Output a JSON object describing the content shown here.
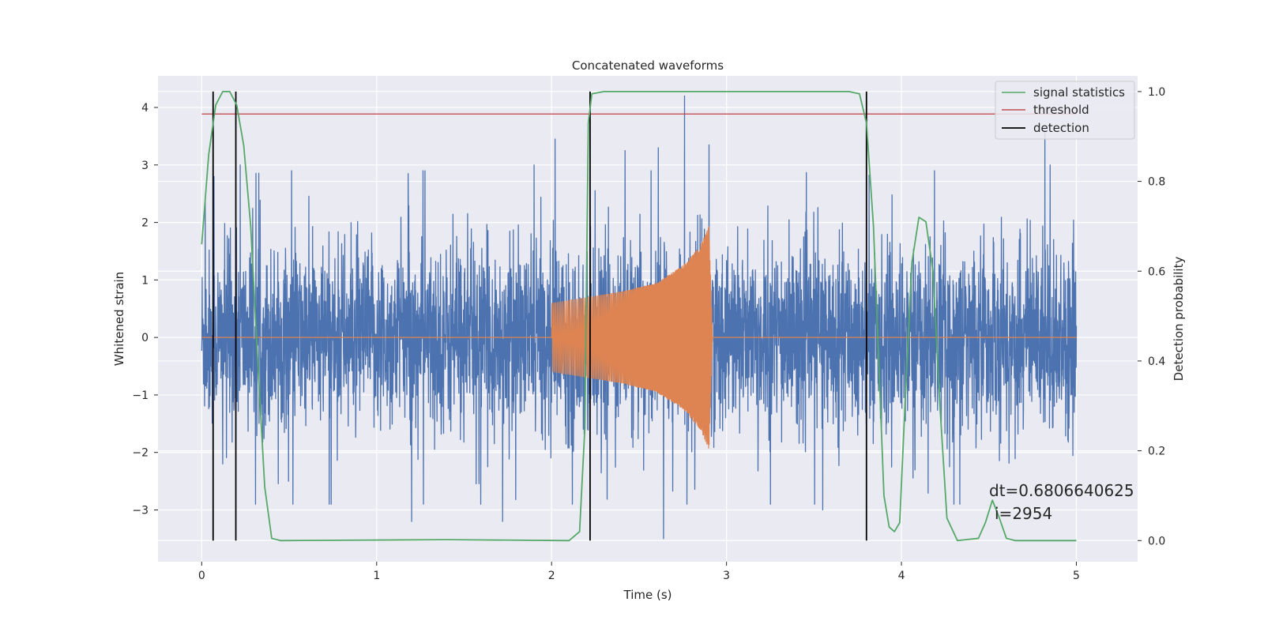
{
  "chart_data": {
    "type": "line",
    "title": "Concatenated waveforms",
    "xlabel": "Time (s)",
    "ylabel": "Whitened strain",
    "y2label": "Detection probability",
    "xlim": [
      -0.25,
      5.35
    ],
    "ylim": [
      -3.9,
      4.55
    ],
    "y2lim": [
      -0.047,
      1.035
    ],
    "xticks": [
      0,
      1,
      2,
      3,
      4,
      5
    ],
    "xtick_labels": [
      "0",
      "1",
      "2",
      "3",
      "4",
      "5"
    ],
    "yticks": [
      -3,
      -2,
      -1,
      0,
      1,
      2,
      3,
      4
    ],
    "ytick_labels": [
      "−3",
      "−2",
      "−1",
      "0",
      "1",
      "2",
      "3",
      "4"
    ],
    "y2ticks": [
      0.0,
      0.2,
      0.4,
      0.6,
      0.8,
      1.0
    ],
    "y2tick_labels": [
      "0.0",
      "0.2",
      "0.4",
      "0.6",
      "0.8",
      "1.0"
    ],
    "grid": true,
    "legend_position": "top-right",
    "series": [
      {
        "name": "",
        "axis": "left",
        "color": "#4c72b0",
        "x_range": [
          0,
          5
        ],
        "description_values": "noisy whitened strain, amplitude roughly within -3.5 to 4.2",
        "peaks": [
          [
            0.02,
            2.4
          ],
          [
            0.07,
            2.8
          ],
          [
            0.22,
            3.0
          ],
          [
            1.18,
            2.85
          ],
          [
            1.9,
            3.0
          ],
          [
            2.02,
            3.45
          ],
          [
            2.42,
            3.25
          ],
          [
            2.61,
            3.3
          ],
          [
            2.76,
            4.2
          ],
          [
            2.9,
            3.35
          ],
          [
            4.82,
            3.6
          ],
          [
            4.85,
            3.0
          ]
        ],
        "troughs": [
          [
            0.12,
            -2.2
          ],
          [
            1.2,
            -3.2
          ],
          [
            1.72,
            -3.2
          ],
          [
            2.64,
            -3.5
          ],
          [
            3.55,
            -3.0
          ],
          [
            4.3,
            -2.9
          ]
        ]
      },
      {
        "name": "",
        "axis": "left",
        "color": "#dd8452",
        "x_range": [
          0,
          5
        ],
        "chirp_start": 2.0,
        "chirp_end": 2.92,
        "envelope": [
          [
            0.0,
            0.0
          ],
          [
            1.99,
            0.0
          ],
          [
            2.0,
            0.6
          ],
          [
            2.4,
            0.8
          ],
          [
            2.6,
            0.95
          ],
          [
            2.75,
            1.25
          ],
          [
            2.85,
            1.6
          ],
          [
            2.9,
            1.95
          ],
          [
            2.92,
            0.0
          ],
          [
            5.0,
            0.0
          ]
        ]
      },
      {
        "name": "signal statistics",
        "axis": "right",
        "color": "#55a868",
        "points": [
          [
            0.0,
            0.66
          ],
          [
            0.04,
            0.86
          ],
          [
            0.08,
            0.97
          ],
          [
            0.12,
            1.0
          ],
          [
            0.16,
            1.0
          ],
          [
            0.2,
            0.97
          ],
          [
            0.24,
            0.88
          ],
          [
            0.28,
            0.7
          ],
          [
            0.32,
            0.4
          ],
          [
            0.36,
            0.12
          ],
          [
            0.4,
            0.005
          ],
          [
            0.45,
            0.0
          ],
          [
            1.4,
            0.002
          ],
          [
            2.1,
            0.0
          ],
          [
            2.16,
            0.02
          ],
          [
            2.19,
            0.25
          ],
          [
            2.21,
            0.93
          ],
          [
            2.23,
            0.995
          ],
          [
            2.3,
            1.0
          ],
          [
            3.7,
            1.0
          ],
          [
            3.76,
            0.995
          ],
          [
            3.8,
            0.93
          ],
          [
            3.84,
            0.7
          ],
          [
            3.87,
            0.4
          ],
          [
            3.9,
            0.1
          ],
          [
            3.93,
            0.03
          ],
          [
            3.96,
            0.02
          ],
          [
            3.99,
            0.04
          ],
          [
            4.02,
            0.3
          ],
          [
            4.06,
            0.62
          ],
          [
            4.1,
            0.72
          ],
          [
            4.14,
            0.71
          ],
          [
            4.18,
            0.6
          ],
          [
            4.22,
            0.3
          ],
          [
            4.26,
            0.05
          ],
          [
            4.32,
            0.0
          ],
          [
            4.44,
            0.005
          ],
          [
            4.48,
            0.04
          ],
          [
            4.52,
            0.09
          ],
          [
            4.56,
            0.05
          ],
          [
            4.6,
            0.005
          ],
          [
            4.65,
            0.0
          ],
          [
            5.0,
            0.0
          ]
        ]
      },
      {
        "name": "threshold",
        "axis": "right",
        "color": "#c44e52",
        "value": 0.95,
        "x_range": [
          0,
          5
        ]
      },
      {
        "name": "detection",
        "axis": "right",
        "color": "#000000",
        "x_values": [
          0.065,
          0.195,
          2.22,
          3.8
        ],
        "y_range": [
          0.0,
          1.0
        ]
      }
    ],
    "annotations": [
      {
        "text": "dt=0.6806640625",
        "x": 4.5,
        "y": 0.105
      },
      {
        "text": "i=2954",
        "x": 4.53,
        "y": 0.055
      }
    ]
  }
}
